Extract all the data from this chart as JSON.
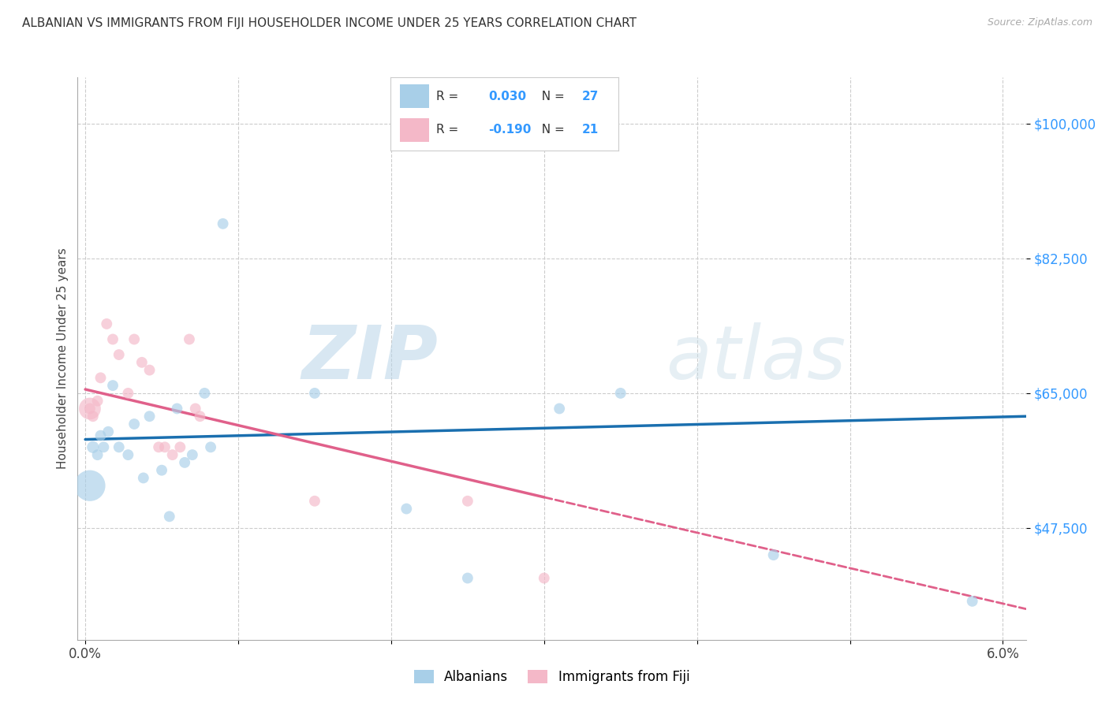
{
  "title": "ALBANIAN VS IMMIGRANTS FROM FIJI HOUSEHOLDER INCOME UNDER 25 YEARS CORRELATION CHART",
  "source": "Source: ZipAtlas.com",
  "ylabel": "Householder Income Under 25 years",
  "legend_label1": "Albanians",
  "legend_label2": "Immigrants from Fiji",
  "r1": "0.030",
  "n1": "27",
  "r2": "-0.190",
  "n2": "21",
  "ymin": 33000,
  "ymax": 106000,
  "xmin": -0.05,
  "xmax": 6.15,
  "yticks": [
    47500,
    65000,
    82500,
    100000
  ],
  "ytick_labels": [
    "$47,500",
    "$65,000",
    "$82,500",
    "$100,000"
  ],
  "watermark_zip": "ZIP",
  "watermark_atlas": "atlas",
  "color_albanian": "#a8cfe8",
  "color_fiji": "#f4b8c8",
  "color_line_albanian": "#1a6faf",
  "color_line_fiji": "#e0608a",
  "color_ytick": "#3399ff",
  "albanians_x": [
    0.05,
    0.08,
    0.1,
    0.12,
    0.15,
    0.18,
    0.22,
    0.28,
    0.32,
    0.38,
    0.42,
    0.5,
    0.55,
    0.6,
    0.65,
    0.7,
    0.78,
    0.82,
    0.9,
    1.5,
    2.1,
    2.5,
    3.1,
    3.5,
    4.5,
    5.8
  ],
  "albanians_y": [
    58000,
    57000,
    59500,
    58000,
    60000,
    66000,
    58000,
    57000,
    61000,
    54000,
    62000,
    55000,
    49000,
    63000,
    56000,
    57000,
    65000,
    58000,
    87000,
    65000,
    50000,
    41000,
    63000,
    65000,
    44000,
    38000
  ],
  "albanians_size": [
    120,
    100,
    100,
    100,
    100,
    100,
    100,
    100,
    100,
    100,
    100,
    100,
    100,
    100,
    100,
    100,
    100,
    100,
    100,
    100,
    100,
    100,
    100,
    100,
    100,
    100
  ],
  "albanians_large_x": 0.03,
  "albanians_large_y": 53000,
  "albanians_large_size": 800,
  "fiji_x": [
    0.03,
    0.05,
    0.08,
    0.1,
    0.14,
    0.18,
    0.22,
    0.28,
    0.32,
    0.37,
    0.42,
    0.48,
    0.52,
    0.57,
    0.62,
    0.68,
    0.72,
    0.75,
    1.5,
    2.5,
    3.0
  ],
  "fiji_y": [
    63000,
    62000,
    64000,
    67000,
    74000,
    72000,
    70000,
    65000,
    72000,
    69000,
    68000,
    58000,
    58000,
    57000,
    58000,
    72000,
    63000,
    62000,
    51000,
    51000,
    41000
  ],
  "fiji_size": [
    100,
    100,
    100,
    100,
    100,
    100,
    100,
    100,
    100,
    100,
    100,
    100,
    100,
    100,
    100,
    100,
    100,
    100,
    100,
    100,
    100
  ],
  "fiji_large_x": 0.03,
  "fiji_large_y": 63000,
  "fiji_large_size": 400,
  "trendline_alb_x0": 0.0,
  "trendline_alb_x1": 6.15,
  "trendline_alb_y0": 59000,
  "trendline_alb_y1": 62000,
  "trendline_fiji_x0": 0.0,
  "trendline_fiji_x1": 3.0,
  "trendline_fiji_y0": 65500,
  "trendline_fiji_y1": 51500,
  "trendline_fiji_dash_x0": 3.0,
  "trendline_fiji_dash_x1": 6.15,
  "trendline_fiji_dash_y0": 51500,
  "trendline_fiji_dash_y1": 37000,
  "xtick_positions": [
    0,
    1,
    2,
    3,
    4,
    5,
    6
  ],
  "xtick_labels": [
    "0.0%",
    "",
    "",
    "",
    "",
    "",
    "6.0%"
  ]
}
